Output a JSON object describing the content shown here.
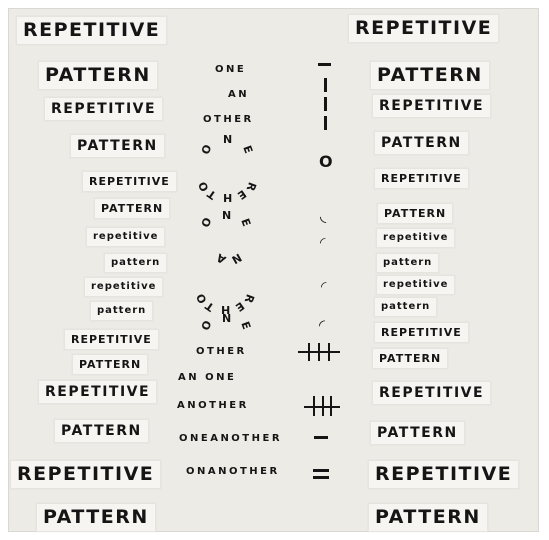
{
  "left": [
    {
      "text": "REPETITIVE"
    },
    {
      "text": "PATTERN"
    },
    {
      "text": "REPETITIVE"
    },
    {
      "text": "PATTERN"
    },
    {
      "text": "REPETITIVE"
    },
    {
      "text": "PATTERN"
    },
    {
      "text": "repetitive"
    },
    {
      "text": "pattern"
    },
    {
      "text": "repetitive"
    },
    {
      "text": "pattern"
    },
    {
      "text": "REPETITIVE"
    },
    {
      "text": "PATTERN"
    },
    {
      "text": "REPETITIVE"
    },
    {
      "text": "PATTERN"
    },
    {
      "text": "REPETITIVE"
    },
    {
      "text": "PATTERN"
    }
  ],
  "right": [
    {
      "text": "REPETITIVE"
    },
    {
      "text": "PATTERN"
    },
    {
      "text": "REPETITIVE"
    },
    {
      "text": "PATTERN"
    },
    {
      "text": "REPETITIVE"
    },
    {
      "text": "PATTERN"
    },
    {
      "text": "repetitive"
    },
    {
      "text": "pattern"
    },
    {
      "text": "repetitive"
    },
    {
      "text": "pattern"
    },
    {
      "text": "REPETITIVE"
    },
    {
      "text": "PATTERN"
    },
    {
      "text": "REPETITIVE"
    },
    {
      "text": "PATTERN"
    },
    {
      "text": "REPETITIVE"
    },
    {
      "text": "PATTERN"
    }
  ],
  "middle": [
    {
      "text": "ONE"
    },
    {
      "text": "AN"
    },
    {
      "text": "OTHER"
    },
    {
      "text": "OTHER"
    },
    {
      "text": "AN ONE"
    },
    {
      "text": "ANOTHER"
    },
    {
      "text": "ONEANOTHER"
    },
    {
      "text": "ONANOTHER"
    }
  ],
  "arcs": [
    {
      "text": "ONE"
    },
    {
      "text": "OTHER"
    },
    {
      "text": "ONE"
    },
    {
      "text": "AN"
    },
    {
      "text": "OTHER"
    },
    {
      "text": "ONE"
    }
  ]
}
